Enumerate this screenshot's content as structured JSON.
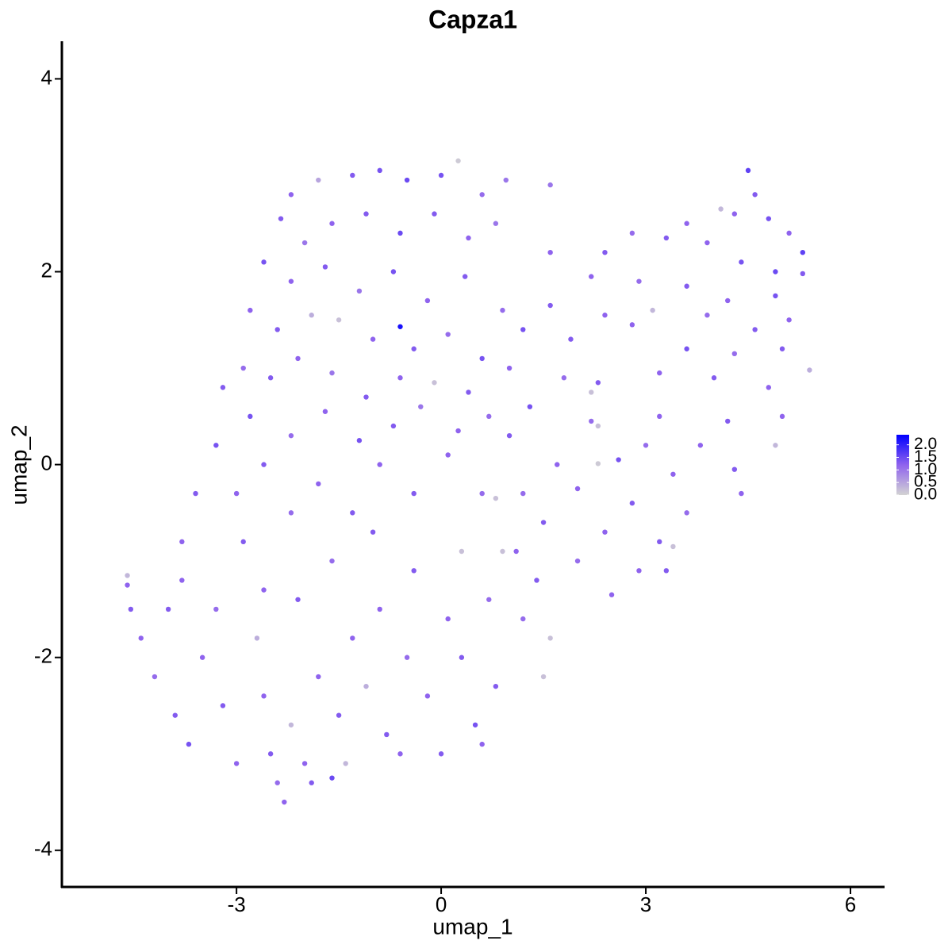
{
  "chart_data": {
    "type": "scatter",
    "title": "Capza1",
    "x_label": "umap_1",
    "y_label": "umap_2",
    "xlim": [
      -5.56,
      6.5
    ],
    "ylim": [
      -4.38,
      4.39
    ],
    "xticks": [
      -3,
      0,
      3,
      6
    ],
    "yticks": [
      -4,
      -2,
      0,
      2,
      4
    ],
    "grid": false,
    "colors": [
      "#d3d3d3",
      "#8f63ee",
      "#0000ff"
    ],
    "clim": [
      0,
      2.4
    ],
    "cticks": [
      {
        "value": 0,
        "label": "0.0"
      },
      0.5,
      {
        "value": 1,
        "label": "1.0"
      },
      1.5,
      {
        "value": 2,
        "label": "2.0"
      }
    ],
    "x": [
      -2.2,
      -1.8,
      -1.3,
      -0.9,
      -0.5,
      0.0,
      0.25,
      0.6,
      0.95,
      -2.35,
      -2.0,
      -1.6,
      -1.1,
      -0.6,
      -0.1,
      0.4,
      0.8,
      -2.6,
      -2.2,
      -1.7,
      -1.2,
      -0.7,
      -0.2,
      0.35,
      0.9,
      -2.8,
      -2.4,
      -1.9,
      -1.5,
      -0.6,
      -1.0,
      -0.4,
      0.1,
      0.6,
      -2.9,
      -2.5,
      -2.1,
      -1.6,
      -1.1,
      -0.6,
      -0.1,
      0.4,
      -3.2,
      -2.8,
      -2.2,
      -1.7,
      -1.2,
      -0.7,
      -0.3,
      0.25,
      0.7,
      4.5,
      4.6,
      4.3,
      4.1,
      4.8,
      5.1,
      5.3,
      3.6,
      3.3,
      2.8,
      1.6,
      1.6,
      2.4,
      3.9,
      4.4,
      4.9,
      5.3,
      2.2,
      2.9,
      3.6,
      4.2,
      4.9,
      1.6,
      2.4,
      3.1,
      3.9,
      4.6,
      5.1,
      1.2,
      1.9,
      2.8,
      3.6,
      4.3,
      5.0,
      1.0,
      1.8,
      2.3,
      2.2,
      3.2,
      4.0,
      4.8,
      5.4,
      1.3,
      2.2,
      3.2,
      4.2,
      5.0,
      1.0,
      2.3,
      3.0,
      3.8,
      4.9,
      1.7,
      2.6,
      3.4,
      4.3,
      2.3,
      1.2,
      2.0,
      2.8,
      3.6,
      4.4,
      1.5,
      2.4,
      3.2,
      3.4,
      1.1,
      2.0,
      2.9,
      3.3,
      1.4,
      2.5,
      1.6,
      1.2,
      1.5,
      -4.6,
      -4.6,
      -4.55,
      -4.4,
      -4.2,
      -4.0,
      -3.8,
      -3.9,
      -3.7,
      -3.5,
      -3.3,
      -3.2,
      -3.0,
      -2.9,
      -2.7,
      -2.6,
      -2.5,
      -2.4,
      -2.3,
      -2.2,
      -2.1,
      -2.0,
      -1.9,
      -1.8,
      -1.6,
      -1.5,
      -1.4,
      -1.3,
      -1.1,
      -1.0,
      -0.9,
      -0.8,
      -0.6,
      -0.5,
      -0.4,
      -0.2,
      0.0,
      0.1,
      0.3,
      0.5,
      0.6,
      0.7,
      0.8,
      0.9,
      0.3,
      -3.3,
      -3.6,
      -3.0,
      -2.6,
      -2.2,
      -1.8,
      -1.3,
      -0.9,
      -0.4,
      0.1,
      0.6,
      0.8,
      -3.8,
      -1.6,
      -2.6
    ],
    "y": [
      2.8,
      2.95,
      3.0,
      3.05,
      2.95,
      3.0,
      3.15,
      2.8,
      2.95,
      2.55,
      2.3,
      2.5,
      2.6,
      2.4,
      2.6,
      2.35,
      2.5,
      2.1,
      1.9,
      2.05,
      1.8,
      2.0,
      1.7,
      1.95,
      1.6,
      1.6,
      1.4,
      1.55,
      1.5,
      1.43,
      1.3,
      1.2,
      1.35,
      1.1,
      1.0,
      0.9,
      1.1,
      0.95,
      0.7,
      0.9,
      0.85,
      0.75,
      0.8,
      0.5,
      0.3,
      0.55,
      0.25,
      0.4,
      0.6,
      0.35,
      0.5,
      3.05,
      2.8,
      2.6,
      2.65,
      2.55,
      2.4,
      2.2,
      2.5,
      2.35,
      2.4,
      2.9,
      2.2,
      2.2,
      2.3,
      2.1,
      2.0,
      1.98,
      1.95,
      1.9,
      1.85,
      1.7,
      1.75,
      1.65,
      1.55,
      1.6,
      1.55,
      1.4,
      1.5,
      1.4,
      1.3,
      1.45,
      1.2,
      1.15,
      1.2,
      1.0,
      0.9,
      0.85,
      0.75,
      0.95,
      0.9,
      0.8,
      0.98,
      0.6,
      0.45,
      0.5,
      0.45,
      0.5,
      0.3,
      0.4,
      0.2,
      0.2,
      0.2,
      0.0,
      0.05,
      -0.1,
      -0.05,
      0.01,
      -0.3,
      -0.25,
      -0.4,
      -0.5,
      -0.3,
      -0.6,
      -0.7,
      -0.8,
      -0.85,
      -0.9,
      -1.0,
      -1.1,
      -1.1,
      -1.2,
      -1.35,
      -1.8,
      -1.6,
      -2.2,
      -1.15,
      -1.25,
      -1.5,
      -1.8,
      -2.2,
      -1.5,
      -1.2,
      -2.6,
      -2.9,
      -2.0,
      -1.5,
      -2.5,
      -3.1,
      -0.8,
      -1.8,
      -2.4,
      -3.0,
      -3.3,
      -3.5,
      -2.7,
      -1.4,
      -3.1,
      -3.3,
      -2.2,
      -1.0,
      -2.6,
      -3.1,
      -1.8,
      -2.3,
      -0.7,
      -1.5,
      -2.8,
      -3.0,
      -2.0,
      -1.1,
      -2.4,
      -3.0,
      -1.6,
      -2.0,
      -2.7,
      -2.9,
      -1.4,
      -2.3,
      -0.9,
      -0.9,
      0.2,
      -0.3,
      -0.3,
      0.0,
      -0.5,
      -0.2,
      -0.5,
      0.0,
      -0.3,
      0.1,
      -0.3,
      -0.35,
      -0.8,
      -3.25,
      -1.3
    ],
    "values": [
      1.2,
      0.5,
      1.3,
      1.4,
      1.5,
      1.4,
      0.1,
      1.1,
      1.0,
      1.3,
      1.0,
      1.2,
      1.3,
      1.5,
      1.3,
      1.2,
      1.0,
      1.4,
      1.2,
      1.3,
      1.0,
      1.4,
      1.2,
      1.3,
      1.1,
      1.2,
      1.3,
      0.4,
      0.2,
      2.2,
      1.2,
      1.3,
      1.1,
      1.4,
      1.1,
      1.3,
      1.2,
      1.0,
      1.3,
      1.2,
      0.2,
      1.3,
      1.3,
      1.4,
      1.1,
      1.2,
      1.4,
      1.3,
      1.0,
      1.2,
      1.1,
      1.6,
      1.3,
      1.2,
      0.3,
      1.4,
      1.2,
      1.6,
      1.2,
      1.3,
      1.1,
      1.0,
      1.2,
      1.3,
      1.2,
      1.4,
      1.5,
      1.3,
      1.2,
      1.1,
      1.3,
      1.2,
      1.4,
      1.3,
      1.2,
      0.3,
      1.1,
      1.3,
      1.2,
      1.4,
      1.3,
      1.2,
      1.4,
      1.1,
      1.3,
      1.2,
      1.1,
      1.3,
      0.2,
      1.2,
      1.3,
      1.2,
      0.4,
      1.4,
      1.1,
      1.2,
      1.3,
      1.2,
      1.3,
      0.2,
      1.1,
      1.2,
      0.3,
      1.2,
      1.4,
      1.2,
      1.3,
      0.1,
      1.1,
      1.2,
      1.3,
      1.1,
      1.2,
      1.3,
      1.2,
      1.3,
      0.2,
      1.2,
      1.1,
      1.2,
      1.3,
      1.3,
      1.2,
      0.2,
      1.1,
      0.2,
      0.3,
      1.2,
      1.3,
      1.2,
      1.1,
      1.3,
      1.2,
      1.3,
      1.4,
      1.2,
      1.1,
      1.3,
      1.2,
      1.3,
      0.4,
      1.2,
      1.3,
      1.1,
      1.2,
      0.3,
      1.3,
      1.2,
      1.3,
      1.2,
      1.1,
      1.3,
      0.3,
      1.2,
      0.4,
      1.3,
      1.2,
      1.3,
      1.2,
      1.1,
      1.3,
      1.2,
      1.3,
      1.2,
      1.3,
      1.4,
      1.2,
      1.1,
      1.3,
      0.2,
      0.2,
      1.4,
      1.3,
      1.2,
      1.3,
      1.1,
      1.2,
      1.3,
      1.2,
      1.3,
      1.2,
      1.1,
      0.2,
      1.2,
      1.5,
      1.2
    ]
  }
}
